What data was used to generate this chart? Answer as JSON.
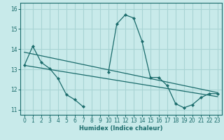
{
  "xlabel": "Humidex (Indice chaleur)",
  "background_color": "#c8eaea",
  "grid_color": "#a8d4d4",
  "line_color": "#1a6b6b",
  "xlim": [
    -0.5,
    23.5
  ],
  "ylim": [
    10.75,
    16.3
  ],
  "yticks": [
    11,
    12,
    13,
    14,
    15,
    16
  ],
  "xticks": [
    0,
    1,
    2,
    3,
    4,
    5,
    6,
    7,
    8,
    9,
    10,
    11,
    12,
    13,
    14,
    15,
    16,
    17,
    18,
    19,
    20,
    21,
    22,
    23
  ],
  "curve_x": [
    0,
    1,
    2,
    3,
    4,
    5,
    6,
    7,
    8,
    9,
    10,
    11,
    12,
    13,
    14,
    15,
    16,
    17,
    18,
    19,
    20,
    21,
    22,
    23
  ],
  "curve_y": [
    13.2,
    14.15,
    13.35,
    13.05,
    12.55,
    11.75,
    11.5,
    11.15,
    null,
    null,
    12.85,
    15.25,
    15.7,
    15.55,
    14.4,
    12.6,
    12.6,
    12.2,
    11.3,
    11.1,
    11.25,
    11.6,
    11.8,
    11.8
  ],
  "line1_y_start": 13.85,
  "line1_y_end": 11.85,
  "line2_y_start": 13.2,
  "line2_y_end": 11.65
}
